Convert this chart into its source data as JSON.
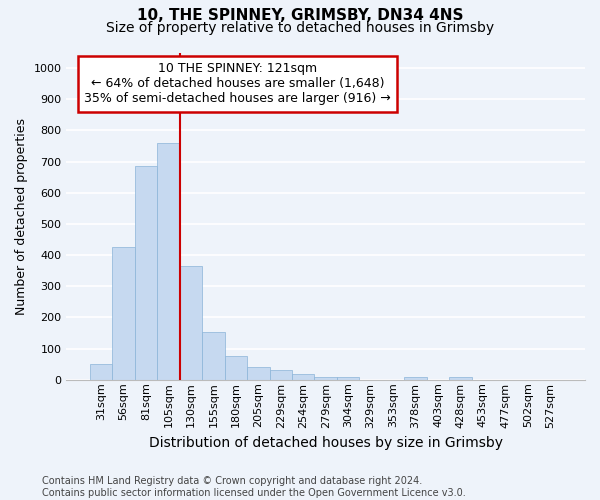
{
  "title_line1": "10, THE SPINNEY, GRIMSBY, DN34 4NS",
  "title_line2": "Size of property relative to detached houses in Grimsby",
  "xlabel": "Distribution of detached houses by size in Grimsby",
  "ylabel": "Number of detached properties",
  "categories": [
    "31sqm",
    "56sqm",
    "81sqm",
    "105sqm",
    "130sqm",
    "155sqm",
    "180sqm",
    "205sqm",
    "229sqm",
    "254sqm",
    "279sqm",
    "304sqm",
    "329sqm",
    "353sqm",
    "378sqm",
    "403sqm",
    "428sqm",
    "453sqm",
    "477sqm",
    "502sqm",
    "527sqm"
  ],
  "values": [
    52,
    425,
    685,
    760,
    365,
    153,
    75,
    40,
    30,
    18,
    10,
    8,
    0,
    0,
    8,
    0,
    10,
    0,
    0,
    0,
    0
  ],
  "bar_color": "#c6d9f0",
  "bar_edge_color": "#8ab4d8",
  "background_color": "#eef3fa",
  "grid_color": "#ffffff",
  "vline_color": "#cc0000",
  "vline_position": 3.5,
  "annotation_text_line1": "10 THE SPINNEY: 121sqm",
  "annotation_text_line2": "← 64% of detached houses are smaller (1,648)",
  "annotation_text_line3": "35% of semi-detached houses are larger (916) →",
  "annotation_box_edge_color": "#cc0000",
  "annotation_box_face_color": "#ffffff",
  "ylim": [
    0,
    1050
  ],
  "yticks": [
    0,
    100,
    200,
    300,
    400,
    500,
    600,
    700,
    800,
    900,
    1000
  ],
  "title_fontsize": 11,
  "subtitle_fontsize": 10,
  "ylabel_fontsize": 9,
  "xlabel_fontsize": 10,
  "tick_fontsize": 8,
  "annotation_fontsize": 9,
  "footnote_line1": "Contains HM Land Registry data © Crown copyright and database right 2024.",
  "footnote_line2": "Contains public sector information licensed under the Open Government Licence v3.0.",
  "footnote_fontsize": 7
}
